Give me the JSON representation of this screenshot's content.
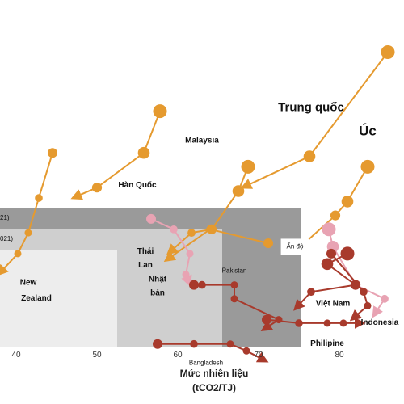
{
  "chart_data": {
    "type": "scatter",
    "xlabel_line1": "Mức nhiên liệu",
    "xlabel_line2": "(tCO2/TJ)",
    "xticks": [
      40,
      50,
      60,
      70,
      80
    ],
    "xlim": [
      38,
      88
    ],
    "ylim": [
      0,
      100
    ],
    "bands": [
      {
        "x0": 38.0,
        "x1": 75.2,
        "y0": 0,
        "y1": 40,
        "color": "#9a9a9a",
        "label": "21)"
      },
      {
        "x0": 38.0,
        "x1": 65.5,
        "y0": 0,
        "y1": 34,
        "color": "#cfcfcf",
        "label": "021)"
      },
      {
        "x0": 38.0,
        "x1": 52.5,
        "y0": 0,
        "y1": 28,
        "color": "#ededed",
        "label": ""
      }
    ],
    "series": [
      {
        "name": "New Zealand",
        "color": "#e59a2f",
        "size": "small",
        "points": [
          [
            44.5,
            56
          ],
          [
            42.8,
            43
          ],
          [
            41.5,
            33
          ],
          [
            40.2,
            27
          ],
          [
            37.8,
            21
          ]
        ]
      },
      {
        "name": "Hàn Quốc",
        "color": "#e59a2f",
        "size": "large",
        "points": [
          [
            57.8,
            68
          ],
          [
            55.8,
            56
          ],
          [
            50.0,
            46
          ],
          [
            47.0,
            43
          ]
        ]
      },
      {
        "name": "Malaysia",
        "color": "#e59a2f",
        "size": "large",
        "points": [
          [
            68.7,
            52
          ],
          [
            67.5,
            45
          ],
          [
            64.2,
            34
          ],
          [
            61.7,
            33
          ],
          [
            58.8,
            27
          ]
        ]
      },
      {
        "name": "Thái Lan",
        "color": "#e59a2f",
        "size": "small",
        "points": [
          [
            71.2,
            30
          ],
          [
            64.0,
            34
          ],
          [
            58.5,
            25
          ]
        ]
      },
      {
        "name": "Trung quốc",
        "color": "#e59a2f",
        "size": "large",
        "points": [
          [
            86.0,
            85
          ],
          [
            76.3,
            55
          ],
          [
            68.0,
            46
          ]
        ]
      },
      {
        "name": "Úc",
        "color": "#e59a2f",
        "size": "large",
        "points": [
          [
            83.5,
            52
          ],
          [
            81.0,
            42
          ],
          [
            79.5,
            38
          ],
          [
            75.2,
            29
          ],
          [
            74.2,
            27
          ]
        ]
      },
      {
        "name": "Nhật bản",
        "color": "#e8a3b3",
        "size": "small",
        "points": [
          [
            56.7,
            37
          ],
          [
            59.5,
            34
          ],
          [
            61.5,
            27
          ],
          [
            61.0,
            21
          ],
          [
            61.5,
            18
          ]
        ]
      },
      {
        "name": "Indonesia",
        "color": "#e8a3b3",
        "size": "large",
        "points": [
          [
            78.7,
            34
          ],
          [
            79.2,
            29
          ],
          [
            82.0,
            18
          ],
          [
            85.6,
            14
          ],
          [
            84.2,
            9
          ]
        ]
      },
      {
        "name": "Ấn độ",
        "color": "#a83a2c",
        "size": "large",
        "points": [
          [
            81.0,
            27
          ],
          [
            78.5,
            24
          ],
          [
            82.0,
            18
          ],
          [
            76.5,
            16
          ],
          [
            74.5,
            11
          ]
        ]
      },
      {
        "name": "Pakistan",
        "color": "#a83a2c",
        "size": "small",
        "points": [
          [
            62.0,
            18
          ],
          [
            63.0,
            18
          ],
          [
            67.0,
            18
          ],
          [
            67.0,
            14
          ],
          [
            72.5,
            8
          ],
          [
            70.5,
            5
          ]
        ]
      },
      {
        "name": "Việt Nam",
        "color": "#a83a2c",
        "size": "small",
        "points": [
          [
            79.0,
            27
          ],
          [
            83.0,
            16
          ],
          [
            83.5,
            12
          ],
          [
            81.5,
            8
          ]
        ]
      },
      {
        "name": "Philipine",
        "color": "#a83a2c",
        "size": "small",
        "points": [
          [
            71.0,
            8
          ],
          [
            75.0,
            7
          ],
          [
            78.5,
            7
          ],
          [
            80.5,
            7
          ],
          [
            83.0,
            7
          ]
        ]
      },
      {
        "name": "Bangladesh",
        "color": "#a83a2c",
        "size": "small",
        "points": [
          [
            57.5,
            1
          ],
          [
            62.0,
            1
          ],
          [
            66.5,
            1
          ],
          [
            68.5,
            -1
          ],
          [
            71.0,
            -4
          ]
        ]
      }
    ],
    "labels": [
      {
        "text": "Trung quốc",
        "x": 76.5,
        "y": 68,
        "size": 15,
        "bold": true
      },
      {
        "text": "Úc",
        "x": 83.5,
        "y": 61,
        "size": 17,
        "bold": true
      },
      {
        "text": "Malaysia",
        "x": 63.0,
        "y": 59,
        "size": 10,
        "bold": true
      },
      {
        "text": "Hàn Quốc",
        "x": 55.0,
        "y": 46,
        "size": 10,
        "bold": true
      },
      {
        "text": "Thái",
        "x": 56.0,
        "y": 27,
        "size": 10,
        "bold": true
      },
      {
        "text": "Lan",
        "x": 56.0,
        "y": 23,
        "size": 10,
        "bold": true
      },
      {
        "text": "Nhật",
        "x": 57.5,
        "y": 19,
        "size": 10,
        "bold": true
      },
      {
        "text": "bản",
        "x": 57.5,
        "y": 15,
        "size": 10,
        "bold": true
      },
      {
        "text": "New",
        "x": 41.5,
        "y": 18,
        "size": 10,
        "bold": true
      },
      {
        "text": "Zealand",
        "x": 42.5,
        "y": 13.5,
        "size": 10,
        "bold": true
      },
      {
        "text": "Pakistan",
        "x": 67.0,
        "y": 21.5,
        "size": 8,
        "bold": false
      },
      {
        "text": "Ấn độ",
        "x": 74.5,
        "y": 28.5,
        "size": 8,
        "bold": false,
        "box": true
      },
      {
        "text": "Việt Nam",
        "x": 79.2,
        "y": 12,
        "size": 10,
        "bold": true
      },
      {
        "text": "Indonesia",
        "x": 85.0,
        "y": 6.5,
        "size": 10,
        "bold": true
      },
      {
        "text": "Philipine",
        "x": 78.5,
        "y": 0.5,
        "size": 10,
        "bold": true
      },
      {
        "text": "Bangladesh",
        "x": 63.5,
        "y": -5,
        "size": 8,
        "bold": false
      }
    ]
  }
}
